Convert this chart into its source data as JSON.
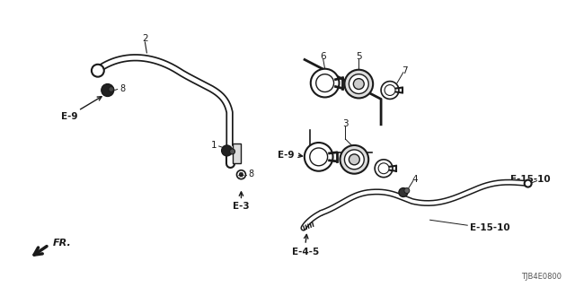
{
  "diagram_id": "TJB4E0800",
  "bg_color": "#ffffff",
  "line_color": "#1a1a1a",
  "figsize": [
    6.4,
    3.2
  ],
  "dpi": 100,
  "labels": {
    "1": "1",
    "2": "2",
    "3": "3",
    "4": "4",
    "5": "5",
    "6": "6",
    "7": "7",
    "8": "8",
    "e3": "E-3",
    "e9": "E-9",
    "e45": "E-4-5",
    "e1510a": "E-15-10",
    "e1510b": "E-15-10",
    "fr": "FR."
  }
}
